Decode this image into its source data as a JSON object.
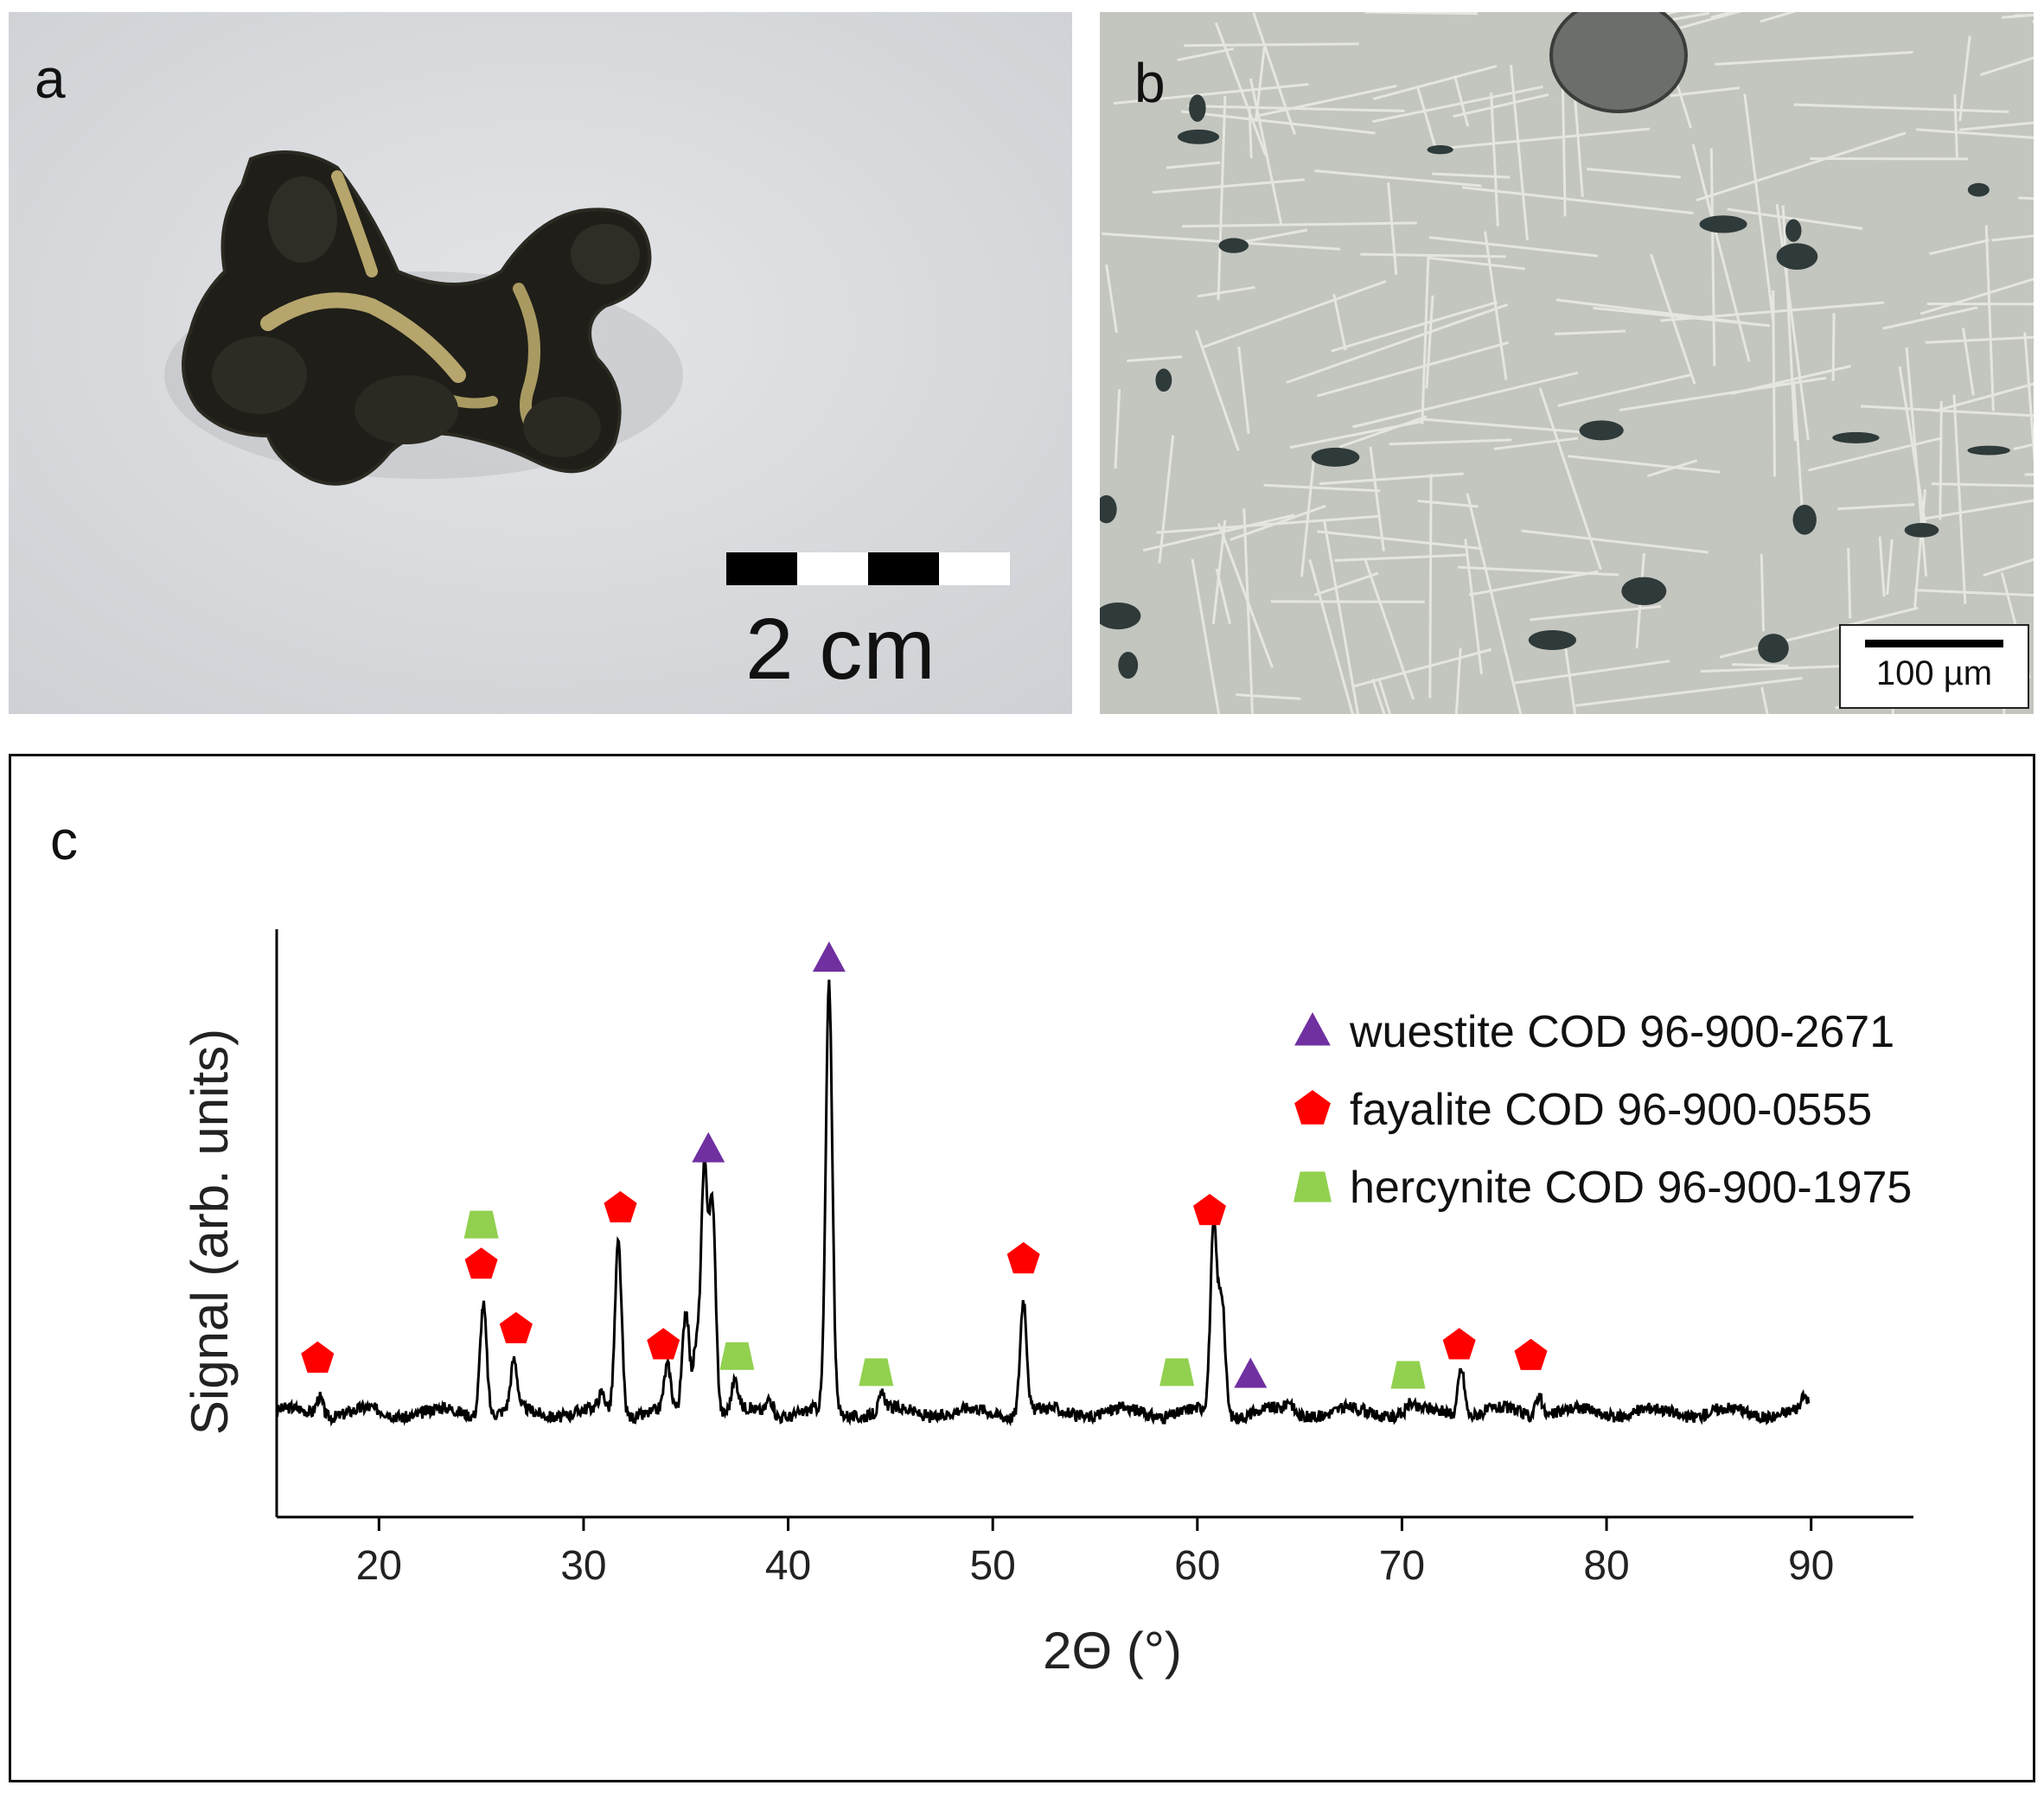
{
  "panels": {
    "a": {
      "letter": "a",
      "scale_label": "2 cm",
      "image": "dark-slag-specimen-photo"
    },
    "b": {
      "letter": "b",
      "scale_label": "100 µm",
      "image": "dendritic-microstructure-micrograph"
    },
    "c": {
      "letter": "c"
    }
  },
  "chart_data": {
    "type": "line",
    "title": "",
    "xlabel": "2Θ (°)",
    "ylabel": "Signal (arb. units)",
    "xlim": [
      15,
      95
    ],
    "x_ticks": [
      20,
      30,
      40,
      50,
      60,
      70,
      80,
      90
    ],
    "y_ticks_shown": false,
    "grid": false,
    "legend_position": "top-right",
    "series": [
      {
        "color": "#000000",
        "baseline": 1.0,
        "peaks": [
          {
            "x": 17.1,
            "y": 1.7
          },
          {
            "x": 25.1,
            "y": 5.2
          },
          {
            "x": 26.6,
            "y": 2.8
          },
          {
            "x": 30.9,
            "y": 1.6
          },
          {
            "x": 31.7,
            "y": 7.4
          },
          {
            "x": 34.1,
            "y": 2.6
          },
          {
            "x": 35.0,
            "y": 4.8
          },
          {
            "x": 35.5,
            "y": 3.4
          },
          {
            "x": 35.9,
            "y": 10.0
          },
          {
            "x": 36.3,
            "y": 8.8
          },
          {
            "x": 37.4,
            "y": 2.1
          },
          {
            "x": 39.1,
            "y": 1.6
          },
          {
            "x": 42.0,
            "y": 16.8
          },
          {
            "x": 44.6,
            "y": 1.6
          },
          {
            "x": 51.5,
            "y": 5.3
          },
          {
            "x": 60.8,
            "y": 7.8
          },
          {
            "x": 61.2,
            "y": 5.2
          },
          {
            "x": 64.5,
            "y": 1.4
          },
          {
            "x": 70.4,
            "y": 1.3
          },
          {
            "x": 72.9,
            "y": 2.8
          },
          {
            "x": 76.7,
            "y": 1.8
          },
          {
            "x": 89.7,
            "y": 1.4
          }
        ]
      }
    ],
    "phases": [
      {
        "name": "wuestite COD 96-900-2671",
        "symbol": "triangle",
        "color": "#7030a0",
        "positions": [
          36.1,
          42.0,
          62.6
        ]
      },
      {
        "name": "fayalite COD 96-900-0555",
        "symbol": "pentagon",
        "color": "#ff0000",
        "positions": [
          17.0,
          25.0,
          26.7,
          31.8,
          33.9,
          51.5,
          60.6,
          72.8,
          76.3
        ]
      },
      {
        "name": "hercynite COD 96-900-1975",
        "symbol": "trapezoid",
        "color": "#92d050",
        "positions": [
          25.0,
          37.5,
          44.3,
          59.0,
          70.3
        ]
      }
    ],
    "markers": [
      {
        "phase": 0,
        "x": 42.0,
        "y": 17.9
      },
      {
        "phase": 0,
        "x": 36.1,
        "y": 10.8
      },
      {
        "phase": 0,
        "x": 62.6,
        "y": 2.4
      },
      {
        "phase": 1,
        "x": 17.0,
        "y": 3.0
      },
      {
        "phase": 1,
        "x": 25.0,
        "y": 6.5
      },
      {
        "phase": 1,
        "x": 26.7,
        "y": 4.1
      },
      {
        "phase": 1,
        "x": 31.8,
        "y": 8.6
      },
      {
        "phase": 1,
        "x": 33.9,
        "y": 3.5
      },
      {
        "phase": 1,
        "x": 51.5,
        "y": 6.7
      },
      {
        "phase": 1,
        "x": 60.6,
        "y": 8.5
      },
      {
        "phase": 1,
        "x": 72.8,
        "y": 3.5
      },
      {
        "phase": 1,
        "x": 76.3,
        "y": 3.1
      },
      {
        "phase": 2,
        "x": 25.0,
        "y": 8.0
      },
      {
        "phase": 2,
        "x": 37.5,
        "y": 3.1
      },
      {
        "phase": 2,
        "x": 44.3,
        "y": 2.5
      },
      {
        "phase": 2,
        "x": 59.0,
        "y": 2.5
      },
      {
        "phase": 2,
        "x": 70.3,
        "y": 2.4
      }
    ]
  }
}
